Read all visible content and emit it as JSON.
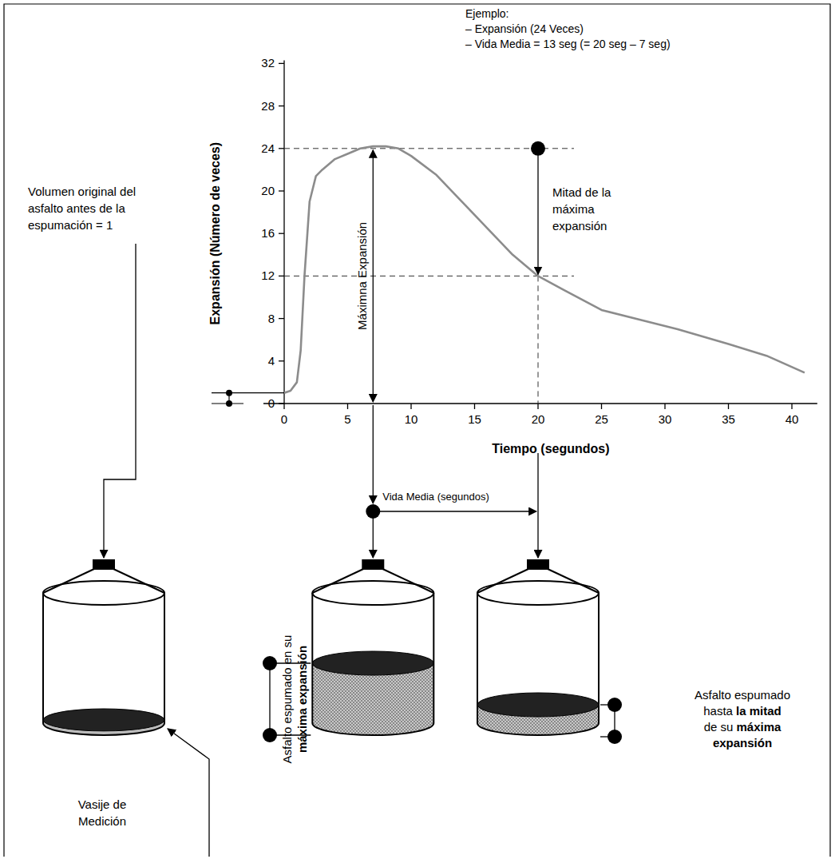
{
  "chart_data": {
    "type": "line",
    "x": [
      0,
      0.5,
      1,
      1.3,
      1.6,
      2,
      2.5,
      3,
      4,
      5,
      6,
      7,
      8,
      9,
      10,
      12,
      14,
      16,
      18,
      20,
      22,
      25,
      28,
      31,
      35,
      38,
      41
    ],
    "series": [
      {
        "color": "#8c8c8c",
        "values": [
          1,
          1.2,
          2,
          5,
          12,
          19,
          21.4,
          22,
          23,
          23.5,
          24,
          24.2,
          24.2,
          24,
          23.3,
          21.5,
          19,
          16.5,
          14,
          12,
          10.7,
          8.8,
          7.9,
          7.0,
          5.6,
          4.5,
          2.9
        ]
      }
    ],
    "xlim": [
      0,
      42
    ],
    "ylim": [
      0,
      32
    ],
    "xticks": [
      0,
      5,
      10,
      15,
      20,
      25,
      30,
      35,
      40
    ],
    "yticks": [
      0,
      4,
      8,
      12,
      16,
      20,
      24,
      28,
      32
    ],
    "x_label": "Tiempo (segundos)",
    "y_label": "Expansión (Número de veces)",
    "annotations": {
      "example": [
        "Ejemplo:",
        "– Expansión (24 Veces)",
        "– Vida Media = 13 seg (= 20 seg – 7 seg)"
      ],
      "max_expansion_label": "Máximna Expansión",
      "half_label": [
        "Mitad de la",
        "máxima",
        "expansión"
      ],
      "half_life_label": "Vida Media (segundos)",
      "max_time": 7,
      "max_expansion": 24,
      "half_time": 20,
      "half_expansion": 12,
      "original_volume": 1
    }
  },
  "diagram": {
    "original_volume_label": [
      "Volumen original del",
      "asfalto antes de la",
      "espumación = 1"
    ],
    "vessel_label": [
      "Vasije de",
      "Medición"
    ],
    "max_vessel_label": [
      [
        {
          "text": "Asfalto espumado en su",
          "bold": false
        }
      ],
      [
        {
          "text": "máxima expansión",
          "bold": true
        }
      ]
    ],
    "half_vessel_label": [
      [
        {
          "text": "Asfalto espumado",
          "bold": false
        }
      ],
      [
        {
          "text": "hasta ",
          "bold": false
        },
        {
          "text": "la mitad",
          "bold": true
        }
      ],
      [
        {
          "text": "de su ",
          "bold": false
        },
        {
          "text": "máxima",
          "bold": true
        }
      ],
      [
        {
          "text": "expansión",
          "bold": true
        }
      ]
    ]
  }
}
